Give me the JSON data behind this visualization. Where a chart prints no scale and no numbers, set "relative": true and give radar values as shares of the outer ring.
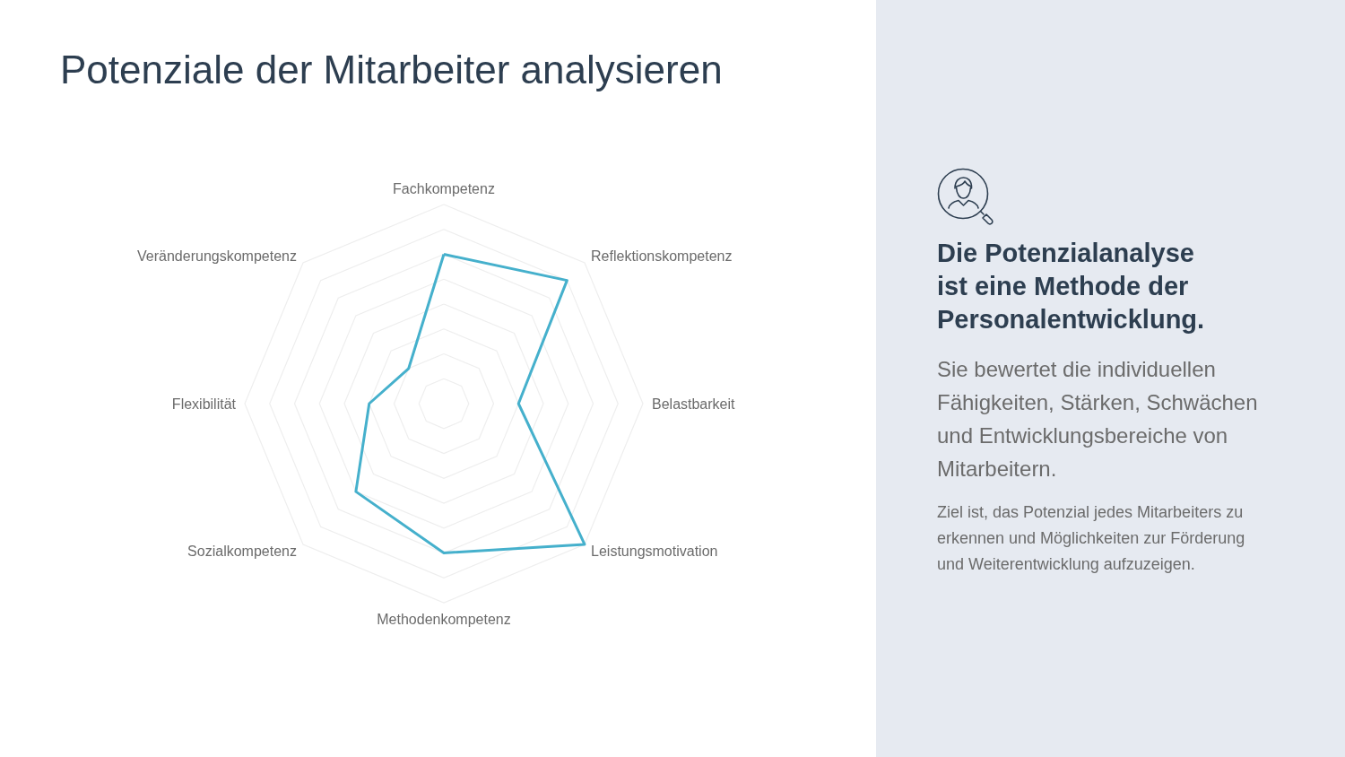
{
  "chart_data": {
    "type": "radar",
    "title": "Potenziale der Mitarbeiter analysieren",
    "annotations": [
      "Die Potenzialanalyse ist eine Methode der Personalentwicklung.",
      "Sie bewertet die individuellen Fähigkeiten, Stärken, Schwächen und Entwicklungsbereiche von Mitarbeitern.",
      "Ziel ist, das Potenzial jedes Mitarbeiters zu erkennen und Möglichkeiten zur Förderung und Weiterentwicklung aufzuzeigen."
    ],
    "categories": [
      "Fachkompetenz",
      "Reflektionskompetenz",
      "Belastbarkeit",
      "Leistungsmotivation",
      "Methodenkompetenz",
      "Sozialkompetenz",
      "Flexibilität",
      "Veränderungskompetenz"
    ],
    "values": [
      0.75,
      0.875,
      0.375,
      1,
      0.75,
      0.625,
      0.375,
      0.25
    ],
    "color": "#45b0cc",
    "relative": true,
    "grid": true,
    "marker": "none",
    "line_style": "solid"
  }
}
